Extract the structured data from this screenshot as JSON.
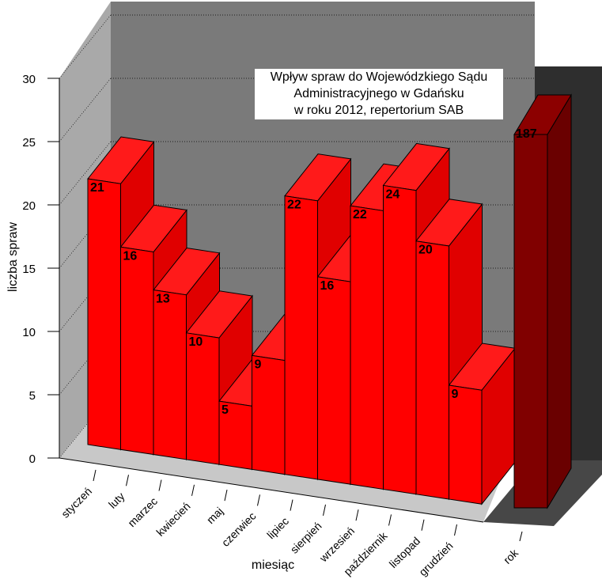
{
  "chart_data": {
    "type": "bar",
    "title_lines": [
      "Wpływ spraw do Wojewódzkiego Sądu",
      "Administracyjnego w Gdańsku",
      "w roku 2012, repertorium SAB"
    ],
    "xlabel": "miesiąc",
    "ylabel": "liczba spraw",
    "ylim": [
      0,
      30
    ],
    "yticks": [
      "0",
      "5",
      "10",
      "15",
      "20",
      "25",
      "30"
    ],
    "categories": [
      "styczeń",
      "luty",
      "marzec",
      "kwiecień",
      "maj",
      "czerwiec",
      "lipiec",
      "sierpień",
      "wrzesień",
      "październik",
      "listopad",
      "grudzień"
    ],
    "values": [
      21,
      16,
      13,
      10,
      5,
      9,
      22,
      16,
      22,
      24,
      20,
      9
    ],
    "total": {
      "category": "rok",
      "value": 187,
      "value_label": "187"
    },
    "colors": {
      "bar_front": "#ff0000",
      "bar_side": "#e00000",
      "bar_top": "#ff1a1a",
      "total_front": "#800000",
      "total_side": "#6a0000",
      "total_top": "#8c0000",
      "wall": "#7a7a7a",
      "side_wall": "#a9a9a9",
      "floor": "#c8c8c8",
      "dark_wall": "#2e2e2e",
      "dark_floor": "#474747",
      "grid": "#000000"
    },
    "grid": true
  }
}
